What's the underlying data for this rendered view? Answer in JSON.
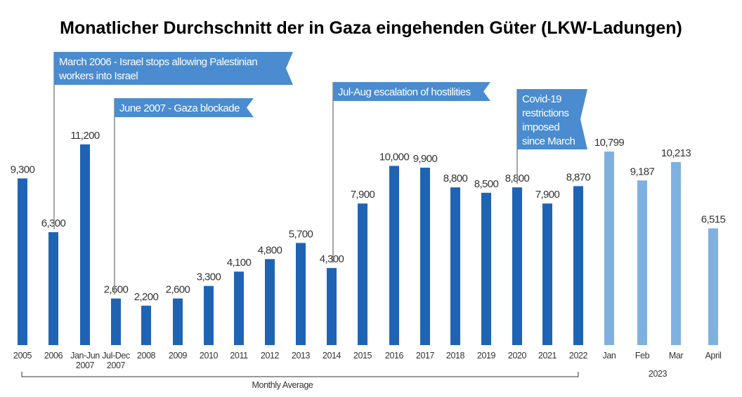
{
  "chart_data": {
    "type": "bar",
    "title": "Monatlicher Durchschnitt der in Gaza eingehenden Güter (LKW-Ladungen)",
    "xlabel": "",
    "ylabel": "",
    "ylim": [
      0,
      12000
    ],
    "grid": false,
    "categories": [
      {
        "label": [
          "2005"
        ],
        "value": 9300,
        "label_text": "9,300",
        "group": "annual"
      },
      {
        "label": [
          "2006"
        ],
        "value": 6300,
        "label_text": "6,300",
        "group": "annual"
      },
      {
        "label": [
          "Jan-Jun",
          "2007"
        ],
        "value": 11200,
        "label_text": "11,200",
        "group": "annual"
      },
      {
        "label": [
          "Jul-Dec",
          "2007"
        ],
        "value": 2600,
        "label_text": "2,600",
        "group": "annual"
      },
      {
        "label": [
          "2008"
        ],
        "value": 2200,
        "label_text": "2,200",
        "group": "annual"
      },
      {
        "label": [
          "2009"
        ],
        "value": 2600,
        "label_text": "2,600",
        "group": "annual"
      },
      {
        "label": [
          "2010"
        ],
        "value": 3300,
        "label_text": "3,300",
        "group": "annual"
      },
      {
        "label": [
          "2011"
        ],
        "value": 4100,
        "label_text": "4,100",
        "group": "annual"
      },
      {
        "label": [
          "2012"
        ],
        "value": 4800,
        "label_text": "4,800",
        "group": "annual"
      },
      {
        "label": [
          "2013"
        ],
        "value": 5700,
        "label_text": "5,700",
        "group": "annual"
      },
      {
        "label": [
          "2014"
        ],
        "value": 4300,
        "label_text": "4,300",
        "group": "annual"
      },
      {
        "label": [
          "2015"
        ],
        "value": 7900,
        "label_text": "7,900",
        "group": "annual"
      },
      {
        "label": [
          "2016"
        ],
        "value": 10000,
        "label_text": "10,000",
        "group": "annual"
      },
      {
        "label": [
          "2017"
        ],
        "value": 9900,
        "label_text": "9,900",
        "group": "annual"
      },
      {
        "label": [
          "2018"
        ],
        "value": 8800,
        "label_text": "8,800",
        "group": "annual"
      },
      {
        "label": [
          "2019"
        ],
        "value": 8500,
        "label_text": "8,500",
        "group": "annual"
      },
      {
        "label": [
          "2020"
        ],
        "value": 8800,
        "label_text": "8,800",
        "group": "annual"
      },
      {
        "label": [
          "2021"
        ],
        "value": 7900,
        "label_text": "7,900",
        "group": "annual"
      },
      {
        "label": [
          "2022"
        ],
        "value": 8870,
        "label_text": "8,870",
        "group": "annual"
      },
      {
        "label": [
          "Jan"
        ],
        "value": 10799,
        "label_text": "10,799",
        "group": "2023"
      },
      {
        "label": [
          "Feb"
        ],
        "value": 9187,
        "label_text": "9,187",
        "group": "2023"
      },
      {
        "label": [
          "Mar"
        ],
        "value": 10213,
        "label_text": "10,213",
        "group": "2023"
      },
      {
        "label": [
          "April"
        ],
        "value": 6515,
        "label_text": "6,515",
        "group": "2023"
      }
    ],
    "colors": {
      "annual": "#1f64b4",
      "2023": "#7fb1e0",
      "annotation": "#4a8ccf"
    },
    "group_labels": {
      "annual": "Monthly Average",
      "2023": "2023"
    },
    "annotations": [
      {
        "lines": [
          "March 2006 - Israel stops allowing Palestinian",
          "workers into Israel"
        ],
        "at_category": 1
      },
      {
        "lines": [
          "June 2007 - Gaza blockade"
        ],
        "at_category": 3
      },
      {
        "lines": [
          "Jul-Aug escalation of hostilities"
        ],
        "at_category": 10
      },
      {
        "lines": [
          "Covid-19",
          "restrictions",
          "imposed",
          "since March"
        ],
        "at_category": 16
      }
    ]
  }
}
